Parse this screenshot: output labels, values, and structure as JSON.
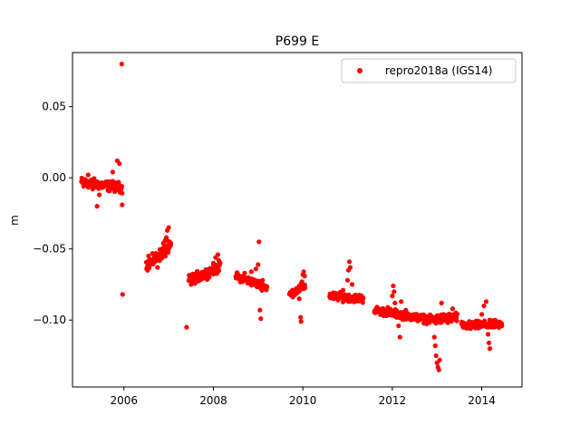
{
  "chart_data": {
    "type": "scatter",
    "title": "P699 E",
    "xlabel": "",
    "ylabel": "m",
    "xlim": [
      2004.85,
      2014.9
    ],
    "ylim": [
      -0.147,
      0.088
    ],
    "xticks": [
      2006,
      2008,
      2010,
      2012,
      2014
    ],
    "yticks": [
      -0.1,
      -0.05,
      0.0,
      0.05
    ],
    "ytick_labels": [
      "−0.10",
      "−0.05",
      "0.00",
      "0.05"
    ],
    "grid": false,
    "legend_position": "top-right",
    "marker_color": "#ff0000",
    "series": [
      {
        "name": "repro2018a (IGS14)",
        "segments": [
          {
            "x0": 2005.05,
            "x1": 2005.96,
            "y_start": -0.003,
            "y_end": -0.007,
            "spread": 0.005
          },
          {
            "x0": 2006.5,
            "x1": 2007.05,
            "y_start": -0.062,
            "y_end": -0.048,
            "spread": 0.006
          },
          {
            "x0": 2007.45,
            "x1": 2008.15,
            "y_start": -0.072,
            "y_end": -0.063,
            "spread": 0.005
          },
          {
            "x0": 2008.5,
            "x1": 2009.2,
            "y_start": -0.069,
            "y_end": -0.077,
            "spread": 0.004
          },
          {
            "x0": 2009.7,
            "x1": 2010.05,
            "y_start": -0.082,
            "y_end": -0.076,
            "spread": 0.004
          },
          {
            "x0": 2010.6,
            "x1": 2011.35,
            "y_start": -0.083,
            "y_end": -0.085,
            "spread": 0.004
          },
          {
            "x0": 2011.6,
            "x1": 2012.9,
            "y_start": -0.093,
            "y_end": -0.1,
            "spread": 0.004
          },
          {
            "x0": 2012.9,
            "x1": 2013.45,
            "y_start": -0.1,
            "y_end": -0.098,
            "spread": 0.005
          },
          {
            "x0": 2013.55,
            "x1": 2014.45,
            "y_start": -0.104,
            "y_end": -0.103,
            "spread": 0.004
          }
        ],
        "points": [
          [
            2005.1,
            -0.006
          ],
          [
            2005.2,
            0.002
          ],
          [
            2005.3,
            -0.008
          ],
          [
            2005.4,
            -0.02
          ],
          [
            2005.45,
            -0.012
          ],
          [
            2005.55,
            -0.005
          ],
          [
            2005.65,
            -0.009
          ],
          [
            2005.75,
            0.004
          ],
          [
            2005.85,
            0.012
          ],
          [
            2005.9,
            0.01
          ],
          [
            2005.92,
            -0.01
          ],
          [
            2005.95,
            0.08
          ],
          [
            2005.96,
            -0.019
          ],
          [
            2005.97,
            -0.082
          ],
          [
            2006.55,
            -0.055
          ],
          [
            2006.65,
            -0.06
          ],
          [
            2006.75,
            -0.063
          ],
          [
            2006.8,
            -0.054
          ],
          [
            2006.85,
            -0.05
          ],
          [
            2006.88,
            -0.046
          ],
          [
            2006.92,
            -0.044
          ],
          [
            2006.95,
            -0.042
          ],
          [
            2006.97,
            -0.037
          ],
          [
            2007.0,
            -0.035
          ],
          [
            2007.02,
            -0.045
          ],
          [
            2007.4,
            -0.105
          ],
          [
            2007.5,
            -0.075
          ],
          [
            2007.6,
            -0.07
          ],
          [
            2007.7,
            -0.072
          ],
          [
            2007.8,
            -0.068
          ],
          [
            2007.9,
            -0.066
          ],
          [
            2008.0,
            -0.06
          ],
          [
            2008.05,
            -0.056
          ],
          [
            2008.1,
            -0.054
          ],
          [
            2008.12,
            -0.058
          ],
          [
            2008.55,
            -0.068
          ],
          [
            2008.7,
            -0.067
          ],
          [
            2008.85,
            -0.066
          ],
          [
            2008.95,
            -0.064
          ],
          [
            2009.0,
            -0.061
          ],
          [
            2009.02,
            -0.045
          ],
          [
            2009.04,
            -0.093
          ],
          [
            2009.06,
            -0.099
          ],
          [
            2009.1,
            -0.072
          ],
          [
            2009.15,
            -0.078
          ],
          [
            2009.75,
            -0.083
          ],
          [
            2009.85,
            -0.08
          ],
          [
            2009.92,
            -0.085
          ],
          [
            2009.95,
            -0.098
          ],
          [
            2009.96,
            -0.101
          ],
          [
            2009.98,
            -0.073
          ],
          [
            2010.0,
            -0.068
          ],
          [
            2010.02,
            -0.066
          ],
          [
            2010.04,
            -0.069
          ],
          [
            2010.65,
            -0.082
          ],
          [
            2010.8,
            -0.084
          ],
          [
            2010.9,
            -0.079
          ],
          [
            2011.0,
            -0.072
          ],
          [
            2011.02,
            -0.065
          ],
          [
            2011.04,
            -0.059
          ],
          [
            2011.06,
            -0.063
          ],
          [
            2011.1,
            -0.075
          ],
          [
            2011.2,
            -0.083
          ],
          [
            2011.3,
            -0.086
          ],
          [
            2011.65,
            -0.093
          ],
          [
            2011.8,
            -0.095
          ],
          [
            2011.9,
            -0.091
          ],
          [
            2012.0,
            -0.083
          ],
          [
            2012.02,
            -0.076
          ],
          [
            2012.04,
            -0.08
          ],
          [
            2012.06,
            -0.088
          ],
          [
            2012.1,
            -0.097
          ],
          [
            2012.14,
            -0.104
          ],
          [
            2012.17,
            -0.112
          ],
          [
            2012.2,
            -0.087
          ],
          [
            2012.3,
            -0.093
          ],
          [
            2012.45,
            -0.097
          ],
          [
            2012.6,
            -0.099
          ],
          [
            2012.8,
            -0.101
          ],
          [
            2012.94,
            -0.112
          ],
          [
            2012.96,
            -0.118
          ],
          [
            2012.98,
            -0.125
          ],
          [
            2013.0,
            -0.13
          ],
          [
            2013.02,
            -0.133
          ],
          [
            2013.04,
            -0.135
          ],
          [
            2013.06,
            -0.128
          ],
          [
            2013.1,
            -0.088
          ],
          [
            2013.15,
            -0.096
          ],
          [
            2013.25,
            -0.101
          ],
          [
            2013.35,
            -0.092
          ],
          [
            2013.4,
            -0.099
          ],
          [
            2013.6,
            -0.103
          ],
          [
            2013.75,
            -0.106
          ],
          [
            2013.85,
            -0.104
          ],
          [
            2013.95,
            -0.101
          ],
          [
            2014.0,
            -0.096
          ],
          [
            2014.05,
            -0.09
          ],
          [
            2014.1,
            -0.087
          ],
          [
            2014.14,
            -0.11
          ],
          [
            2014.16,
            -0.116
          ],
          [
            2014.18,
            -0.12
          ],
          [
            2014.22,
            -0.104
          ],
          [
            2014.3,
            -0.1
          ],
          [
            2014.4,
            -0.102
          ]
        ]
      }
    ]
  }
}
